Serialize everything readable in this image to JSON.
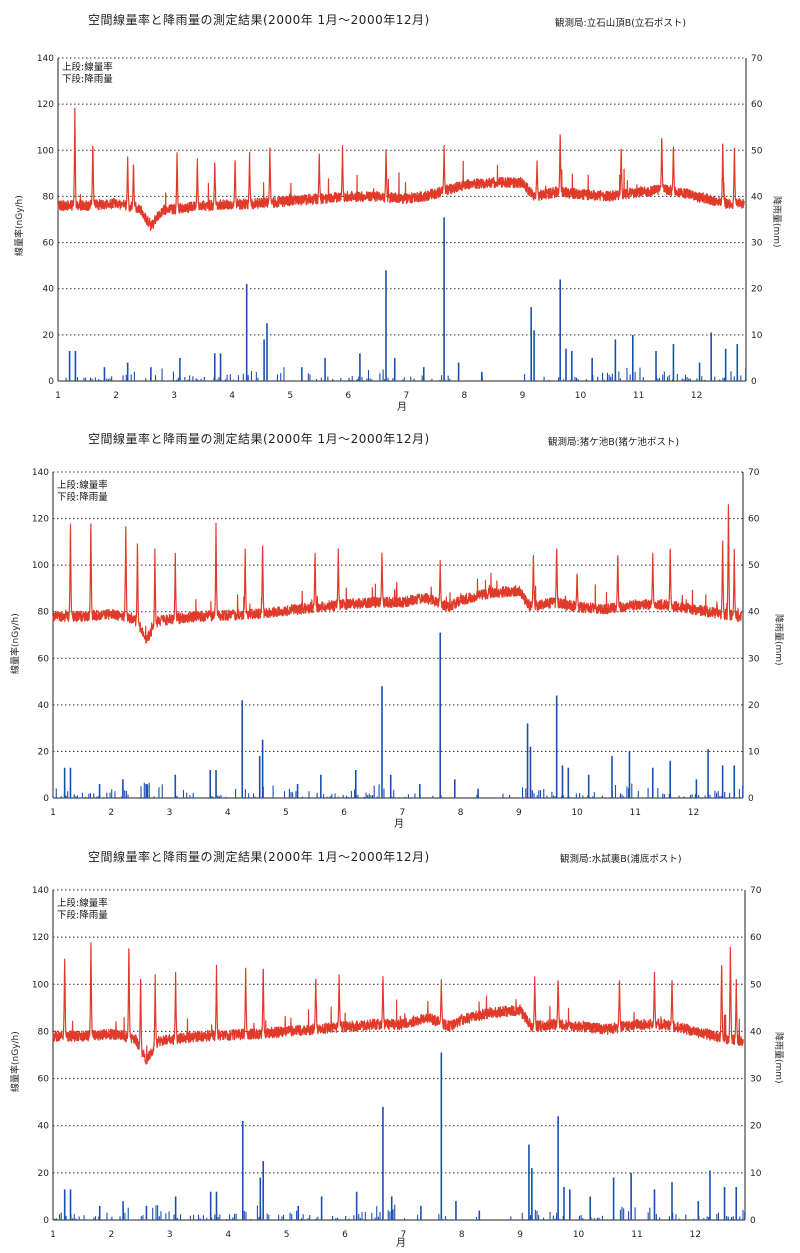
{
  "chart_data": [
    {
      "type": "line",
      "title": "空間線量率と降雨量の測定結果(2000年 1月～2000年12月)",
      "station": "観測局:立石山頂B(立石ポスト)",
      "legend": [
        "上段:線量率",
        "下段:降雨量"
      ],
      "ylabel_left": "線量率(nGy/h)",
      "ylabel_right": "降雨量(mm)",
      "xlabel": "月",
      "x_ticks": [
        "1",
        "2",
        "3",
        "4",
        "5",
        "6",
        "7",
        "8",
        "9",
        "10",
        "11",
        "12"
      ],
      "ylim_left": [
        0,
        140
      ],
      "ylim_right": [
        0,
        70
      ],
      "y_ticks_left": [
        0,
        20,
        40,
        60,
        80,
        100,
        120,
        140
      ],
      "y_ticks_right": [
        0,
        10,
        20,
        30,
        40,
        50,
        60,
        70
      ],
      "grid": "dotted",
      "series": [
        {
          "name": "線量率",
          "color": "#e03a2a",
          "axis": "left",
          "baseline": [
            [
              1.0,
              76
            ],
            [
              1.5,
              76
            ],
            [
              2.0,
              77
            ],
            [
              2.4,
              75
            ],
            [
              2.6,
              67
            ],
            [
              2.8,
              74
            ],
            [
              3.5,
              76
            ],
            [
              4.5,
              77
            ],
            [
              5.5,
              79
            ],
            [
              6.0,
              80
            ],
            [
              6.5,
              80
            ],
            [
              7.0,
              79
            ],
            [
              7.3,
              80
            ],
            [
              7.6,
              82
            ],
            [
              8.0,
              85
            ],
            [
              8.5,
              86
            ],
            [
              9.0,
              86
            ],
            [
              9.2,
              80
            ],
            [
              9.6,
              82
            ],
            [
              10.0,
              81
            ],
            [
              10.5,
              80
            ],
            [
              11.0,
              82
            ],
            [
              11.5,
              83
            ],
            [
              12.0,
              80
            ],
            [
              12.5,
              77
            ],
            [
              12.8,
              77
            ]
          ],
          "peaks": [
            [
              1.29,
              120
            ],
            [
              1.6,
              105
            ],
            [
              2.2,
              98
            ],
            [
              2.3,
              96
            ],
            [
              3.05,
              101
            ],
            [
              3.4,
              98
            ],
            [
              3.7,
              97
            ],
            [
              4.05,
              98
            ],
            [
              4.3,
              100
            ],
            [
              4.65,
              102
            ],
            [
              5.5,
              100
            ],
            [
              5.9,
              102
            ],
            [
              6.65,
              102
            ],
            [
              7.65,
              102
            ],
            [
              9.25,
              96
            ],
            [
              9.65,
              110
            ],
            [
              10.7,
              103
            ],
            [
              11.4,
              108
            ],
            [
              11.6,
              104
            ],
            [
              12.45,
              106
            ],
            [
              12.65,
              104
            ]
          ]
        },
        {
          "name": "降雨量",
          "color": "#1a4fb0",
          "axis": "right",
          "peaks": [
            [
              1.2,
              6.5
            ],
            [
              1.3,
              6.5
            ],
            [
              1.8,
              3
            ],
            [
              2.2,
              4
            ],
            [
              2.6,
              3
            ],
            [
              3.1,
              5
            ],
            [
              3.7,
              6
            ],
            [
              3.8,
              6
            ],
            [
              4.25,
              21
            ],
            [
              4.6,
              12.5
            ],
            [
              4.55,
              9
            ],
            [
              5.2,
              3
            ],
            [
              5.6,
              5
            ],
            [
              6.2,
              6
            ],
            [
              6.65,
              24
            ],
            [
              6.8,
              5
            ],
            [
              7.3,
              3
            ],
            [
              7.65,
              35.5
            ],
            [
              7.9,
              4
            ],
            [
              8.3,
              2
            ],
            [
              9.15,
              16
            ],
            [
              9.2,
              11
            ],
            [
              9.65,
              22
            ],
            [
              9.75,
              7
            ],
            [
              9.85,
              6.5
            ],
            [
              10.2,
              5
            ],
            [
              10.6,
              9
            ],
            [
              10.9,
              10
            ],
            [
              11.3,
              6.5
            ],
            [
              11.6,
              8
            ],
            [
              12.05,
              4
            ],
            [
              12.25,
              10.5
            ],
            [
              12.5,
              7
            ],
            [
              12.7,
              8
            ]
          ]
        }
      ]
    },
    {
      "type": "line",
      "title": "空間線量率と降雨量の測定結果(2000年 1月～2000年12月)",
      "station": "観測局:猪ケ池B(猪ケ池ポスト)",
      "legend": [
        "上段:線量率",
        "下段:降雨量"
      ],
      "ylabel_left": "線量率(nGy/h)",
      "ylabel_right": "降雨量(mm)",
      "xlabel": "月",
      "x_ticks": [
        "1",
        "2",
        "3",
        "4",
        "5",
        "6",
        "7",
        "8",
        "9",
        "10",
        "11",
        "12"
      ],
      "ylim_left": [
        0,
        140
      ],
      "ylim_right": [
        0,
        70
      ],
      "y_ticks_left": [
        0,
        20,
        40,
        60,
        80,
        100,
        120,
        140
      ],
      "y_ticks_right": [
        0,
        10,
        20,
        30,
        40,
        50,
        60,
        70
      ],
      "grid": "dotted",
      "series": [
        {
          "name": "線量率",
          "color": "#e03a2a",
          "axis": "left",
          "baseline": [
            [
              1.0,
              78
            ],
            [
              1.5,
              78
            ],
            [
              2.0,
              79
            ],
            [
              2.4,
              77
            ],
            [
              2.6,
              68
            ],
            [
              2.8,
              76
            ],
            [
              3.5,
              78
            ],
            [
              4.5,
              79
            ],
            [
              5.5,
              82
            ],
            [
              6.0,
              83
            ],
            [
              6.5,
              84
            ],
            [
              7.0,
              84
            ],
            [
              7.4,
              86
            ],
            [
              7.8,
              82
            ],
            [
              8.0,
              85
            ],
            [
              8.5,
              88
            ],
            [
              9.0,
              89
            ],
            [
              9.2,
              82
            ],
            [
              9.6,
              84
            ],
            [
              10.0,
              82
            ],
            [
              10.5,
              81
            ],
            [
              11.0,
              83
            ],
            [
              11.5,
              83
            ],
            [
              12.0,
              81
            ],
            [
              12.5,
              79
            ],
            [
              12.8,
              78
            ]
          ],
          "peaks": [
            [
              1.3,
              121
            ],
            [
              1.65,
              121
            ],
            [
              2.25,
              118
            ],
            [
              2.45,
              112
            ],
            [
              2.75,
              107
            ],
            [
              3.1,
              105
            ],
            [
              3.8,
              118
            ],
            [
              4.3,
              108
            ],
            [
              4.6,
              112
            ],
            [
              5.5,
              107
            ],
            [
              5.9,
              107
            ],
            [
              6.65,
              107
            ],
            [
              7.65,
              102
            ],
            [
              9.25,
              105
            ],
            [
              9.65,
              110
            ],
            [
              10.0,
              98
            ],
            [
              10.7,
              107
            ],
            [
              11.3,
              106
            ],
            [
              11.6,
              110
            ],
            [
              12.5,
              113
            ],
            [
              12.6,
              130
            ],
            [
              12.7,
              108
            ]
          ]
        },
        {
          "name": "降雨量",
          "color": "#1a4fb0",
          "axis": "right",
          "peaks": [
            [
              1.2,
              6.5
            ],
            [
              1.3,
              6.5
            ],
            [
              1.8,
              3
            ],
            [
              2.2,
              4
            ],
            [
              2.6,
              3
            ],
            [
              3.1,
              5
            ],
            [
              3.7,
              6
            ],
            [
              3.8,
              6
            ],
            [
              4.25,
              21
            ],
            [
              4.6,
              12.5
            ],
            [
              4.55,
              9
            ],
            [
              5.2,
              3
            ],
            [
              5.6,
              5
            ],
            [
              6.2,
              6
            ],
            [
              6.65,
              24
            ],
            [
              6.8,
              5
            ],
            [
              7.3,
              3
            ],
            [
              7.65,
              35.5
            ],
            [
              7.9,
              4
            ],
            [
              8.3,
              2
            ],
            [
              9.15,
              16
            ],
            [
              9.2,
              11
            ],
            [
              9.65,
              22
            ],
            [
              9.75,
              7
            ],
            [
              9.85,
              6.5
            ],
            [
              10.2,
              5
            ],
            [
              10.6,
              9
            ],
            [
              10.9,
              10
            ],
            [
              11.3,
              6.5
            ],
            [
              11.6,
              8
            ],
            [
              12.05,
              4
            ],
            [
              12.25,
              10.5
            ],
            [
              12.5,
              7
            ],
            [
              12.7,
              7
            ]
          ]
        }
      ]
    },
    {
      "type": "line",
      "title": "空間線量率と降雨量の測定結果(2000年 1月～2000年12月)",
      "station": "観測局:水試裏B(浦底ポスト)",
      "legend": [
        "上段:線量率",
        "下段:降雨量"
      ],
      "ylabel_left": "線量率(nGy/h)",
      "ylabel_right": "降雨量(mm)",
      "xlabel": "月",
      "x_ticks": [
        "1",
        "2",
        "3",
        "4",
        "5",
        "6",
        "7",
        "8",
        "9",
        "10",
        "11",
        "12"
      ],
      "ylim_left": [
        0,
        140
      ],
      "ylim_right": [
        0,
        70
      ],
      "y_ticks_left": [
        0,
        20,
        40,
        60,
        80,
        100,
        120,
        140
      ],
      "y_ticks_right": [
        0,
        10,
        20,
        30,
        40,
        50,
        60,
        70
      ],
      "grid": "dotted",
      "series": [
        {
          "name": "線量率",
          "color": "#e03a2a",
          "axis": "left",
          "baseline": [
            [
              1.0,
              78
            ],
            [
              1.5,
              78
            ],
            [
              2.0,
              79
            ],
            [
              2.4,
              77
            ],
            [
              2.6,
              68
            ],
            [
              2.8,
              76
            ],
            [
              3.5,
              78
            ],
            [
              4.5,
              79
            ],
            [
              5.5,
              81
            ],
            [
              6.0,
              82
            ],
            [
              6.5,
              83
            ],
            [
              7.0,
              83
            ],
            [
              7.4,
              86
            ],
            [
              7.8,
              82
            ],
            [
              8.0,
              85
            ],
            [
              8.5,
              88
            ],
            [
              9.0,
              89
            ],
            [
              9.2,
              82
            ],
            [
              9.6,
              83
            ],
            [
              10.0,
              82
            ],
            [
              10.5,
              81
            ],
            [
              11.0,
              83
            ],
            [
              11.5,
              83
            ],
            [
              12.0,
              80
            ],
            [
              12.5,
              77
            ],
            [
              12.8,
              76
            ]
          ],
          "peaks": [
            [
              1.2,
              112
            ],
            [
              1.65,
              121
            ],
            [
              2.3,
              120
            ],
            [
              2.5,
              106
            ],
            [
              2.75,
              104
            ],
            [
              3.1,
              105
            ],
            [
              3.8,
              108
            ],
            [
              4.3,
              108
            ],
            [
              4.6,
              110
            ],
            [
              5.5,
              104
            ],
            [
              5.9,
              104
            ],
            [
              6.65,
              105
            ],
            [
              7.65,
              102
            ],
            [
              9.25,
              104
            ],
            [
              9.65,
              104
            ],
            [
              10.7,
              104
            ],
            [
              11.3,
              106
            ],
            [
              11.6,
              104
            ],
            [
              12.45,
              112
            ],
            [
              12.6,
              119
            ],
            [
              12.7,
              103
            ]
          ]
        },
        {
          "name": "降雨量",
          "color": "#1a4fb0",
          "axis": "right",
          "peaks": [
            [
              1.2,
              6.5
            ],
            [
              1.3,
              6.5
            ],
            [
              1.8,
              3
            ],
            [
              2.2,
              4
            ],
            [
              2.6,
              3
            ],
            [
              3.1,
              5
            ],
            [
              3.7,
              6
            ],
            [
              3.8,
              6
            ],
            [
              4.25,
              21
            ],
            [
              4.6,
              12.5
            ],
            [
              4.55,
              9
            ],
            [
              5.2,
              3
            ],
            [
              5.6,
              5
            ],
            [
              6.2,
              6
            ],
            [
              6.65,
              24
            ],
            [
              6.8,
              5
            ],
            [
              7.3,
              3
            ],
            [
              7.65,
              35.5
            ],
            [
              7.9,
              4
            ],
            [
              8.3,
              2
            ],
            [
              9.15,
              16
            ],
            [
              9.2,
              11
            ],
            [
              9.65,
              22
            ],
            [
              9.75,
              7
            ],
            [
              9.85,
              6.5
            ],
            [
              10.2,
              5
            ],
            [
              10.6,
              9
            ],
            [
              10.9,
              10
            ],
            [
              11.3,
              6.5
            ],
            [
              11.6,
              8
            ],
            [
              12.05,
              4
            ],
            [
              12.25,
              10.5
            ],
            [
              12.5,
              7
            ],
            [
              12.7,
              7
            ]
          ]
        }
      ]
    }
  ]
}
